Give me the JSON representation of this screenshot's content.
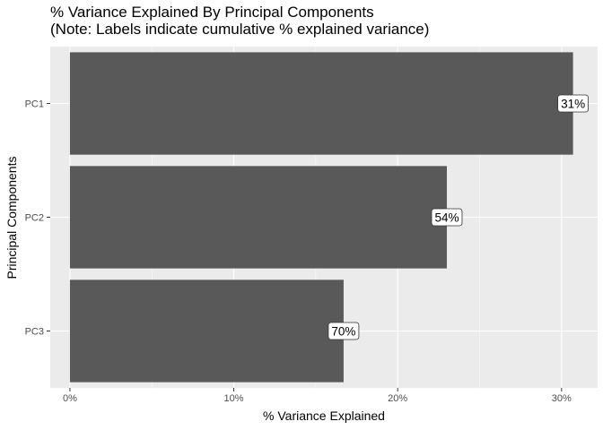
{
  "chart_data": {
    "type": "bar",
    "orientation": "horizontal",
    "title": "% Variance Explained By Principal Components",
    "subtitle": "(Note: Labels indicate cumulative % explained variance)",
    "xlabel": "% Variance Explained",
    "ylabel": "Principal Components",
    "categories": [
      "PC1",
      "PC2",
      "PC3"
    ],
    "values": [
      30.7,
      23.0,
      16.7
    ],
    "data_labels": [
      "31%",
      "54%",
      "70%"
    ],
    "xlim": [
      -1.2,
      32.2
    ],
    "x_ticks": [
      0,
      10,
      20,
      30
    ],
    "x_tick_labels": [
      "0%",
      "10%",
      "20%",
      "30%"
    ],
    "grid": true,
    "colors": {
      "bar": "#595959",
      "panel": "#ebebeb",
      "grid": "#ffffff"
    }
  }
}
